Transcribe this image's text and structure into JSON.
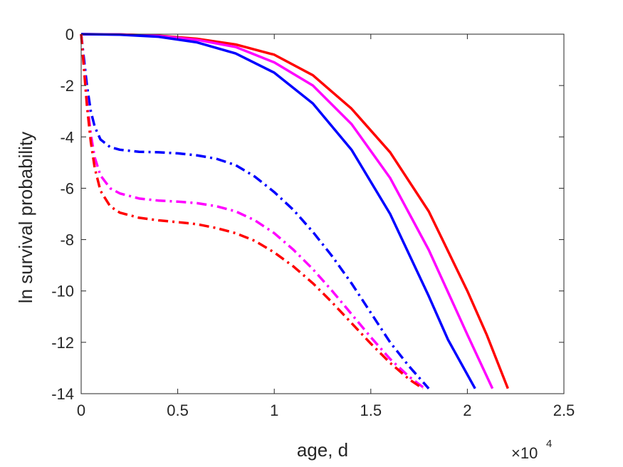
{
  "chart_data": {
    "type": "line",
    "title": "",
    "xlabel": "age, d",
    "ylabel": "ln survival probability",
    "x_exponent_label": "×10",
    "x_exponent_power": "4",
    "xlim": [
      0,
      25000
    ],
    "ylim": [
      -14,
      0
    ],
    "xticks": [
      {
        "value": 0,
        "label": "0"
      },
      {
        "value": 5000,
        "label": "0.5"
      },
      {
        "value": 10000,
        "label": "1"
      },
      {
        "value": 15000,
        "label": "1.5"
      },
      {
        "value": 20000,
        "label": "2"
      },
      {
        "value": 25000,
        "label": "2.5"
      }
    ],
    "yticks": [
      {
        "value": 0,
        "label": "0"
      },
      {
        "value": -2,
        "label": "-2"
      },
      {
        "value": -4,
        "label": "-4"
      },
      {
        "value": -6,
        "label": "-6"
      },
      {
        "value": -8,
        "label": "-8"
      },
      {
        "value": -10,
        "label": "-10"
      },
      {
        "value": -12,
        "label": "-12"
      },
      {
        "value": -14,
        "label": "-14"
      }
    ],
    "grid": false,
    "series": [
      {
        "color": "#ff0000",
        "style": "solid",
        "x": [
          0,
          2000,
          4000,
          6000,
          8000,
          10000,
          12000,
          14000,
          16000,
          18000,
          20000,
          21000,
          22100
        ],
        "y": [
          0,
          -0.01,
          -0.06,
          -0.18,
          -0.4,
          -0.8,
          -1.6,
          -2.9,
          -4.6,
          -6.9,
          -10.0,
          -11.7,
          -13.8
        ]
      },
      {
        "color": "#ff00ff",
        "style": "solid",
        "x": [
          0,
          2000,
          4000,
          6000,
          8000,
          10000,
          12000,
          14000,
          16000,
          18000,
          20000,
          21300
        ],
        "y": [
          0,
          -0.01,
          -0.07,
          -0.22,
          -0.5,
          -1.1,
          -2.0,
          -3.5,
          -5.6,
          -8.4,
          -11.7,
          -13.8
        ]
      },
      {
        "color": "#0000ff",
        "style": "solid",
        "x": [
          0,
          2000,
          4000,
          6000,
          8000,
          10000,
          12000,
          14000,
          16000,
          18000,
          19000,
          20400
        ],
        "y": [
          0,
          -0.02,
          -0.1,
          -0.32,
          -0.75,
          -1.5,
          -2.7,
          -4.5,
          -7.0,
          -10.2,
          -11.9,
          -13.8
        ]
      },
      {
        "color": "#0000ff",
        "style": "dashdot",
        "x": [
          0,
          150,
          300,
          500,
          700,
          1000,
          1500,
          2000,
          3000,
          4000,
          5000,
          6000,
          7000,
          8000,
          9000,
          10000,
          11000,
          12000,
          13000,
          14000,
          15000,
          16000,
          17000,
          18000
        ],
        "y": [
          0,
          -1.0,
          -2.0,
          -3.0,
          -3.6,
          -4.1,
          -4.4,
          -4.5,
          -4.58,
          -4.6,
          -4.64,
          -4.72,
          -4.85,
          -5.1,
          -5.55,
          -6.15,
          -6.85,
          -7.7,
          -8.65,
          -9.7,
          -10.85,
          -12.0,
          -12.95,
          -13.8
        ]
      },
      {
        "color": "#ff00ff",
        "style": "dashdot",
        "x": [
          0,
          150,
          300,
          500,
          700,
          1000,
          1500,
          2000,
          3000,
          4000,
          5000,
          6000,
          7000,
          8000,
          9000,
          10000,
          11000,
          12000,
          13000,
          14000,
          15000,
          16000,
          17000,
          17800
        ],
        "y": [
          0,
          -1.3,
          -2.6,
          -3.9,
          -4.8,
          -5.5,
          -6.0,
          -6.2,
          -6.4,
          -6.48,
          -6.52,
          -6.58,
          -6.7,
          -6.9,
          -7.25,
          -7.75,
          -8.4,
          -9.15,
          -10.0,
          -10.9,
          -11.8,
          -12.65,
          -13.35,
          -13.8
        ]
      },
      {
        "color": "#ff0000",
        "style": "dashdot",
        "x": [
          0,
          150,
          300,
          500,
          700,
          1000,
          1500,
          2000,
          3000,
          4000,
          5000,
          6000,
          7000,
          8000,
          9000,
          10000,
          11000,
          12000,
          13000,
          14000,
          15000,
          16000,
          17000,
          17700
        ],
        "y": [
          0,
          -1.4,
          -2.8,
          -4.2,
          -5.2,
          -6.1,
          -6.7,
          -6.95,
          -7.15,
          -7.25,
          -7.32,
          -7.4,
          -7.55,
          -7.75,
          -8.05,
          -8.5,
          -9.05,
          -9.7,
          -10.45,
          -11.25,
          -12.05,
          -12.8,
          -13.45,
          -13.8
        ]
      }
    ]
  }
}
